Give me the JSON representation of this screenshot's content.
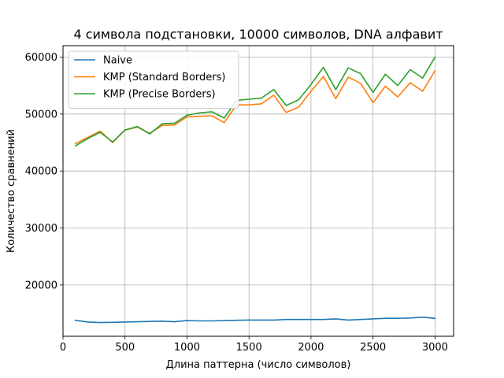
{
  "chart_data": {
    "type": "line",
    "title": "4 символа подстановки, 10000 символов, DNA алфавит",
    "xlabel": "Длина паттерна (число символов)",
    "ylabel": "Количество сравнений",
    "xlim": [
      0,
      3150
    ],
    "ylim": [
      11000,
      62000
    ],
    "xticks": [
      0,
      500,
      1000,
      1500,
      2000,
      2500,
      3000
    ],
    "yticks": [
      20000,
      30000,
      40000,
      50000,
      60000
    ],
    "grid": true,
    "legend_position": "top-left",
    "x": [
      100,
      200,
      300,
      400,
      500,
      600,
      700,
      800,
      900,
      1000,
      1100,
      1200,
      1300,
      1400,
      1500,
      1600,
      1700,
      1800,
      1900,
      2000,
      2100,
      2200,
      2300,
      2400,
      2500,
      2600,
      2700,
      2800,
      2900,
      3000
    ],
    "series": [
      {
        "name": "Naive",
        "color": "#1f77b4",
        "values": [
          13800,
          13500,
          13400,
          13450,
          13500,
          13550,
          13600,
          13650,
          13550,
          13750,
          13700,
          13700,
          13750,
          13800,
          13850,
          13850,
          13850,
          13950,
          13950,
          13950,
          13950,
          14050,
          13850,
          13950,
          14050,
          14150,
          14150,
          14200,
          14350,
          14150
        ]
      },
      {
        "name": "KMP (Standard Borders)",
        "color": "#ff7f0e",
        "values": [
          44800,
          45900,
          47000,
          45000,
          47200,
          47700,
          46600,
          48000,
          48100,
          49500,
          49600,
          49700,
          48500,
          51600,
          51600,
          51800,
          53300,
          50300,
          51200,
          54000,
          56600,
          52700,
          56500,
          55400,
          52000,
          54900,
          53000,
          55500,
          54000,
          57600
        ]
      },
      {
        "name": "KMP (Precise Borders)",
        "color": "#2ca02c",
        "values": [
          44400,
          45700,
          46800,
          45100,
          47200,
          47800,
          46500,
          48300,
          48400,
          49800,
          50200,
          50400,
          49300,
          52400,
          52600,
          52800,
          54300,
          51500,
          52500,
          55200,
          58200,
          54300,
          58100,
          57100,
          53800,
          57000,
          55000,
          57800,
          56300,
          60000
        ]
      }
    ]
  }
}
